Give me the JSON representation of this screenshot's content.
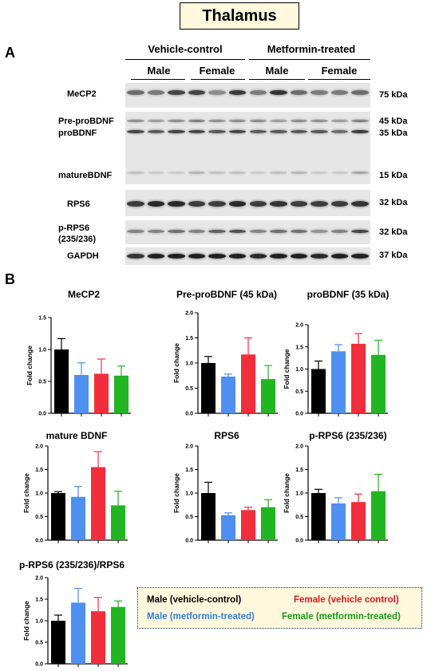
{
  "title": "Thalamus",
  "panel_a": {
    "letter": "A",
    "groups": [
      "Vehicle-control",
      "Metformin-treated"
    ],
    "sexes": [
      "Male",
      "Female",
      "Male",
      "Female"
    ],
    "rows": [
      {
        "label": "MeCP2",
        "kda": "75 kDa"
      },
      {
        "label": "Pre-proBDNF",
        "kda": "45 kDa"
      },
      {
        "label": "proBDNF",
        "kda": "35 kDa"
      },
      {
        "label": "matureBDNF",
        "kda": "15 kDa"
      },
      {
        "label": "RPS6",
        "kda": "32 kDa"
      },
      {
        "label": "p-RPS6\n(235/236)",
        "kda": "32 kDa"
      },
      {
        "label": "GAPDH",
        "kda": "37 kDa"
      }
    ]
  },
  "panel_b": {
    "letter": "B"
  },
  "chart_data": [
    {
      "type": "bar",
      "title": "MeCP2",
      "ylabel": "Fold change",
      "ylim": [
        0,
        1.5
      ],
      "yticks": [
        "0.0",
        "0.5",
        "1.0",
        "1.5"
      ],
      "categories": [
        "Male (vehicle-control)",
        "Male (metformin-treated)",
        "Female (vehicle control)",
        "Female (metformin-treated)"
      ],
      "values": [
        1.0,
        0.6,
        0.62,
        0.59
      ],
      "errors": [
        0.17,
        0.19,
        0.23,
        0.15
      ]
    },
    {
      "type": "bar",
      "title": "Pre-proBDNF (45 kDa)",
      "ylabel": "Fold change",
      "ylim": [
        0,
        2.0
      ],
      "yticks": [
        "0.0",
        "0.5",
        "1.0",
        "1.5",
        "2.0"
      ],
      "categories": [
        "Male (vehicle-control)",
        "Male (metformin-treated)",
        "Female (vehicle control)",
        "Female (metformin-treated)"
      ],
      "values": [
        1.0,
        0.73,
        1.17,
        0.68
      ],
      "errors": [
        0.13,
        0.05,
        0.33,
        0.27
      ]
    },
    {
      "type": "bar",
      "title": "proBDNF (35 kDa)",
      "ylabel": "Fold change",
      "ylim": [
        0,
        2.0
      ],
      "yticks": [
        "0.0",
        "0.5",
        "1.0",
        "1.5",
        "2.0"
      ],
      "categories": [
        "Male (vehicle-control)",
        "Male (metformin-treated)",
        "Female (vehicle control)",
        "Female (metformin-treated)"
      ],
      "values": [
        1.0,
        1.4,
        1.57,
        1.32
      ],
      "errors": [
        0.18,
        0.15,
        0.23,
        0.33
      ]
    },
    {
      "type": "bar",
      "title": "mature BDNF",
      "ylabel": "Fold change",
      "ylim": [
        0,
        2.0
      ],
      "yticks": [
        "0.0",
        "0.5",
        "1.0",
        "1.5",
        "2.0"
      ],
      "categories": [
        "Male (vehicle-control)",
        "Male (metformin-treated)",
        "Female (vehicle control)",
        "Female (metformin-treated)"
      ],
      "values": [
        1.0,
        0.92,
        1.55,
        0.74
      ],
      "errors": [
        0.03,
        0.22,
        0.33,
        0.3
      ]
    },
    {
      "type": "bar",
      "title": "RPS6",
      "ylabel": "Fold change",
      "ylim": [
        0,
        2.0
      ],
      "yticks": [
        "0.0",
        "0.5",
        "1.0",
        "1.5",
        "2.0"
      ],
      "categories": [
        "Male (vehicle-control)",
        "Male (metformin-treated)",
        "Female (vehicle control)",
        "Female (metformin-treated)"
      ],
      "values": [
        1.0,
        0.53,
        0.64,
        0.7
      ],
      "errors": [
        0.23,
        0.05,
        0.06,
        0.16
      ]
    },
    {
      "type": "bar",
      "title": "p-RPS6 (235/236)",
      "ylabel": "Fold change",
      "ylim": [
        0,
        2.0
      ],
      "yticks": [
        "0.0",
        "0.5",
        "1.0",
        "1.5",
        "2.0"
      ],
      "categories": [
        "Male (vehicle-control)",
        "Male (metformin-treated)",
        "Female (vehicle control)",
        "Female (metformin-treated)"
      ],
      "values": [
        1.0,
        0.78,
        0.81,
        1.04
      ],
      "errors": [
        0.08,
        0.12,
        0.17,
        0.36
      ]
    },
    {
      "type": "bar",
      "title": "p-RPS6 (235/236)/RPS6",
      "ylabel": "Fold change",
      "ylim": [
        0,
        2.0
      ],
      "yticks": [
        "0.0",
        "0.5",
        "1.0",
        "1.5",
        "2.0"
      ],
      "categories": [
        "Male (vehicle-control)",
        "Male (metformin-treated)",
        "Female (vehicle control)",
        "Female (metformin-treated)"
      ],
      "values": [
        1.0,
        1.42,
        1.22,
        1.32
      ],
      "errors": [
        0.13,
        0.33,
        0.32,
        0.14
      ]
    }
  ],
  "bar_colors": [
    "#000000",
    "#4f8ff0",
    "#f22e3c",
    "#22b522"
  ],
  "legend": {
    "male_vehicle": "Male (vehicle-control)",
    "female_vehicle": "Female (vehicle control)",
    "male_metformin": "Male (metformin-treated)",
    "female_metformin": "Female (metformin-treated)",
    "colors": {
      "male_vehicle": "#000000",
      "female_vehicle": "#e8141e",
      "male_metformin": "#3a7fd8",
      "female_metformin": "#1a9a1a"
    }
  }
}
